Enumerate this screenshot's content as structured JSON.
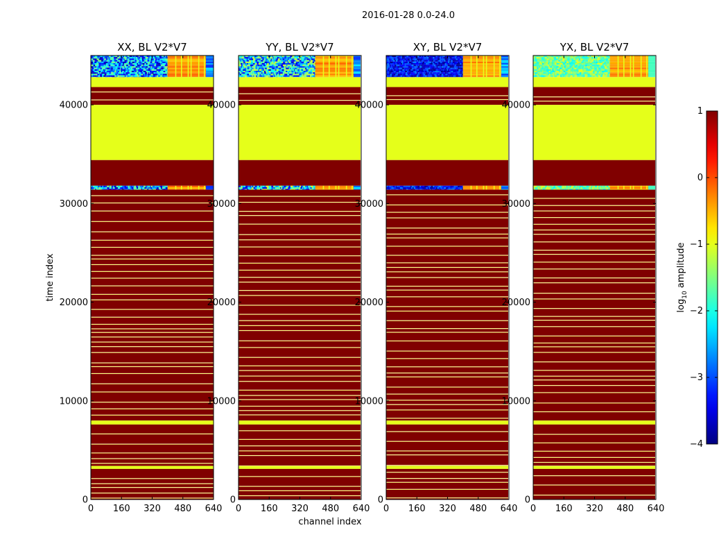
{
  "chart_data": {
    "type": "heatmap",
    "suptitle": "2016-01-28 0.0-24.0",
    "xlabel": "channel index",
    "ylabel": "time index",
    "xlim": [
      0,
      640
    ],
    "ylim": [
      0,
      45000
    ],
    "xticks": [
      0,
      160,
      320,
      480,
      640
    ],
    "yticks": [
      0,
      10000,
      20000,
      30000,
      40000
    ],
    "colorbar": {
      "label": "log10 amplitude",
      "label_main": "log",
      "label_sub": "10",
      "label_tail": " amplitude",
      "range": [
        -4,
        1
      ],
      "ticks": [
        -4,
        -3,
        -2,
        -1,
        0,
        1
      ],
      "tick_labels": [
        "−4",
        "−3",
        "−2",
        "−1",
        "0",
        "1"
      ],
      "colors": [
        "#00007f",
        "#0000ff",
        "#00ffff",
        "#7fff7f",
        "#ffff00",
        "#ff0000",
        "#7f0000"
      ]
    },
    "panels": [
      {
        "title": "XX, BL V2*V7",
        "variant": "noisy",
        "noise_mode": "blue-cyan"
      },
      {
        "title": "YY, BL V2*V7",
        "variant": "noisy",
        "noise_mode": "mixed"
      },
      {
        "title": "XY, BL V2*V7",
        "variant": "noisy",
        "noise_mode": "dark-blue"
      },
      {
        "title": "YX, BL V2*V7",
        "variant": "noisy",
        "noise_mode": "green"
      }
    ],
    "regions": [
      {
        "t0": 42800,
        "t1": 45000,
        "content": "noisy visibilities, log10 amp -4 to -1; channels 400-640 flagged (~ -0.5)"
      },
      {
        "t0": 41800,
        "t1": 42800,
        "value": -1
      },
      {
        "t0": 40000,
        "t1": 41800,
        "content": "red/yellow stripes",
        "value": 1
      },
      {
        "t0": 34400,
        "t1": 40000,
        "value": -1
      },
      {
        "t0": 31800,
        "t1": 34400,
        "value": 1
      },
      {
        "t0": 31400,
        "t1": 31800,
        "content": "noisy visibilities, log10 amp -4 to -1"
      },
      {
        "t0": 8000,
        "t1": 31400,
        "content": "red/yellow stripes",
        "value": 1
      },
      {
        "t0": 7600,
        "t1": 8000,
        "value": -1
      },
      {
        "t0": 3400,
        "t1": 7600,
        "content": "red/yellow stripes",
        "value": 1
      },
      {
        "t0": 3100,
        "t1": 3400,
        "value": -1
      },
      {
        "t0": 0,
        "t1": 3100,
        "content": "red/yellow stripes",
        "value": 1
      }
    ]
  }
}
